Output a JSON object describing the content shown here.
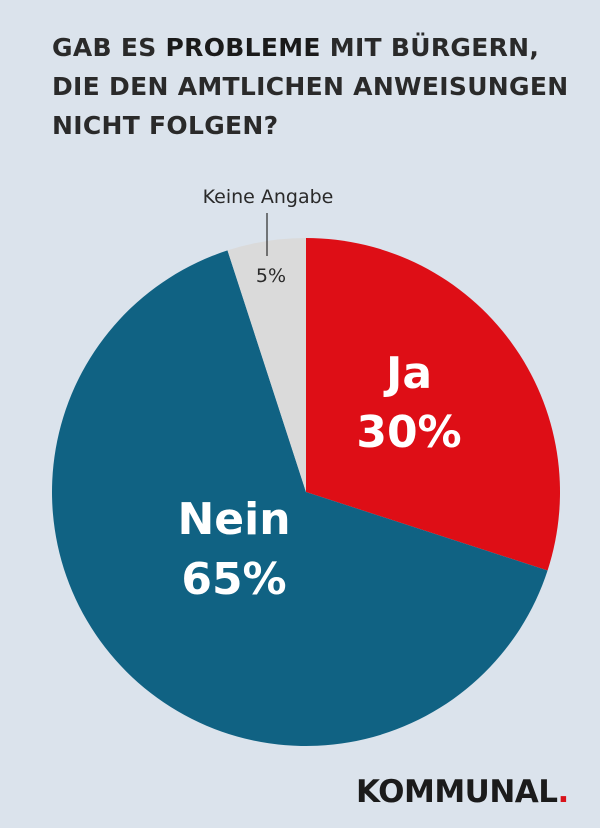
{
  "title": {
    "line1_pre": "GAB ES ",
    "line1_bold": "PROBLEME",
    "line1_post": " MIT BÜRGERN,",
    "line2": "DIE DEN AMTLICHEN ANWEISUNGEN",
    "line3": "NICHT FOLGEN?"
  },
  "chart_data": {
    "type": "pie",
    "slices": [
      {
        "name": "Ja",
        "value": 30,
        "label": "30%",
        "color": "#de0e16"
      },
      {
        "name": "Nein",
        "value": 65,
        "label": "65%",
        "color": "#106283"
      },
      {
        "name": "Keine Angabe",
        "value": 5,
        "label": "5%",
        "color": "#dadada"
      }
    ],
    "start_angle_deg": 0,
    "direction": "clockwise"
  },
  "colors": {
    "background": "#dbe3ec",
    "text": "#2a2a2a",
    "accent": "#d8121a"
  },
  "brand": {
    "name": "KOMMUNAL",
    "dot": "."
  }
}
